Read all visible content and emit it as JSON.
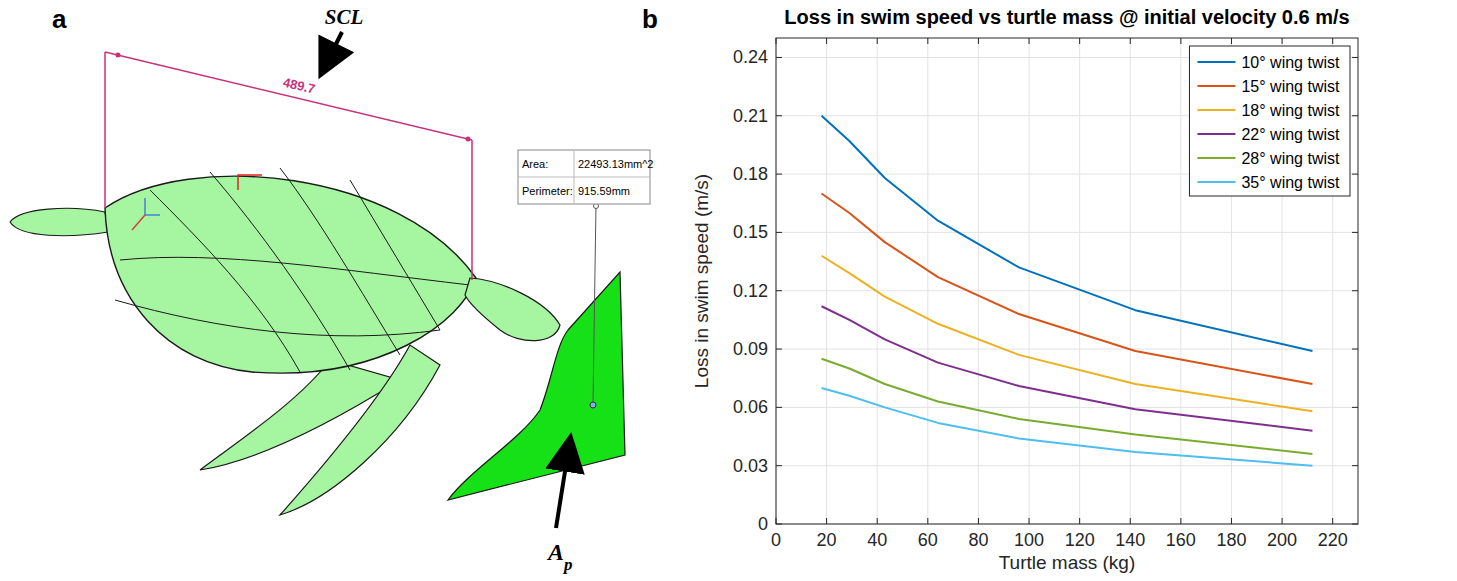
{
  "panel_a": {
    "letter": "a",
    "scl_label": "SCL",
    "dimension": "489.7",
    "area_label": "Area:",
    "area_value": "22493.13mm^2",
    "perimeter_label": "Perimeter:",
    "perimeter_value": "915.59mm",
    "ap_label": "A",
    "ap_subscript": "p"
  },
  "panel_b_letter": "b",
  "chart_data": {
    "type": "line",
    "title": "Loss in swim speed vs turtle mass @ initial velocity 0.6 m/s",
    "x_label": "Turtle mass (kg)",
    "y_label": "Loss in swim speed (m/s)",
    "x": [
      18,
      29,
      43,
      64,
      96,
      142,
      212
    ],
    "series": [
      {
        "name": "10° wing twist",
        "color": "#0072bd",
        "values": [
          0.21,
          0.197,
          0.178,
          0.156,
          0.132,
          0.11,
          0.089
        ]
      },
      {
        "name": "15° wing twist",
        "color": "#d95319",
        "values": [
          0.17,
          0.16,
          0.145,
          0.127,
          0.108,
          0.089,
          0.072
        ]
      },
      {
        "name": "18° wing twist",
        "color": "#edb120",
        "values": [
          0.138,
          0.129,
          0.117,
          0.103,
          0.087,
          0.072,
          0.058
        ]
      },
      {
        "name": "22° wing twist",
        "color": "#7e2f8e",
        "values": [
          0.112,
          0.105,
          0.095,
          0.083,
          0.071,
          0.059,
          0.048
        ]
      },
      {
        "name": "28° wing twist",
        "color": "#77ac30",
        "values": [
          0.085,
          0.08,
          0.072,
          0.063,
          0.054,
          0.046,
          0.036
        ]
      },
      {
        "name": "35° wing twist",
        "color": "#4dbeee",
        "values": [
          0.07,
          0.066,
          0.06,
          0.052,
          0.044,
          0.037,
          0.03
        ]
      }
    ],
    "xlim": [
      0,
      230
    ],
    "xticks": [
      0,
      20,
      40,
      60,
      80,
      100,
      120,
      140,
      160,
      180,
      200,
      220
    ],
    "ylim": [
      0,
      0.25
    ],
    "yticks": [
      0,
      0.03,
      0.06,
      0.09,
      0.12,
      0.15,
      0.18,
      0.21,
      0.24
    ],
    "grid": true,
    "legend": "upper right"
  }
}
